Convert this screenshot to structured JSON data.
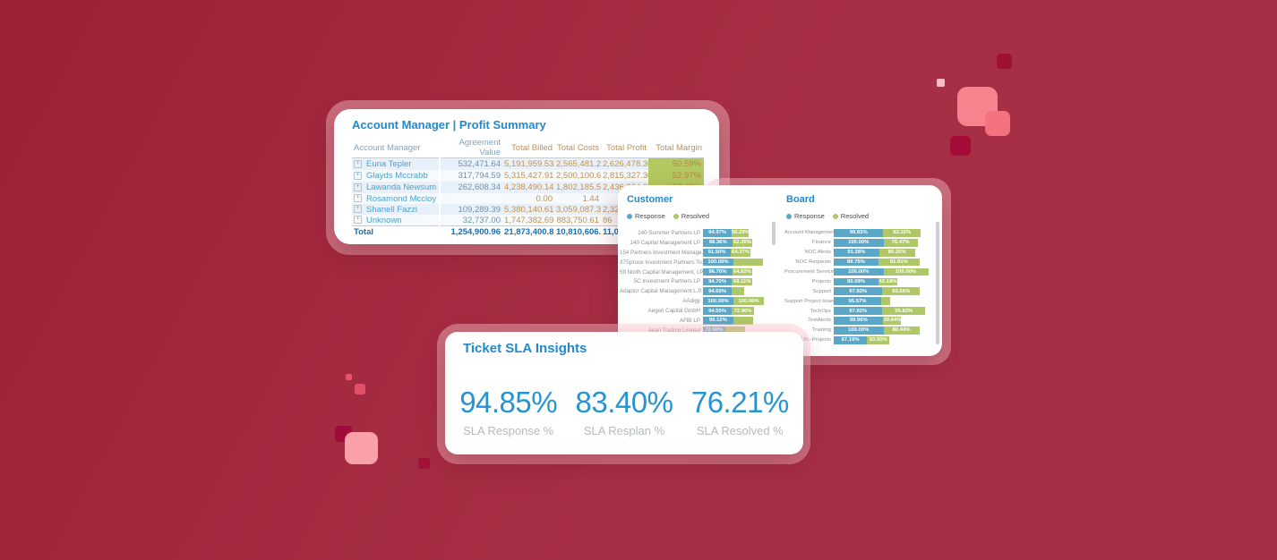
{
  "profit_card": {
    "title": "Account Manager | Profit Summary",
    "columns": [
      "Account Manager",
      "Agreement Value",
      "Total Billed",
      "Total Costs",
      "Total Profit",
      "Total Margin"
    ],
    "rows": [
      {
        "name": "Euna Tepler",
        "agreement": "532,471.64",
        "billed": "5,191,959.53",
        "costs": "2,565,481.23",
        "profit": "2,626,478.30",
        "margin": "50.59%",
        "profit_truncated": false
      },
      {
        "name": "Glayds Mccrabb",
        "agreement": "317,794.59",
        "billed": "5,315,427.91",
        "costs": "2,500,100.61",
        "profit": "2,815,327.30",
        "margin": "52.97%",
        "profit_truncated": false
      },
      {
        "name": "Lawanda Newsum",
        "agreement": "262,608.34",
        "billed": "4,238,490.14",
        "costs": "1,802,185.50",
        "profit": "2,436,304.64",
        "margin": "57.48%",
        "profit_truncated": false
      },
      {
        "name": "Rosamond Mccloy",
        "agreement": "",
        "billed": "0.00",
        "costs": "1.44",
        "profit": "",
        "margin": "",
        "profit_truncated": true
      },
      {
        "name": "Shanell Fazzi",
        "agreement": "109,289.39",
        "billed": "5,380,140.61",
        "costs": "3,059,087.31",
        "profit": "2,32",
        "margin": "",
        "profit_truncated": true
      },
      {
        "name": "Unknown",
        "agreement": "32,737.00",
        "billed": "1,747,382.69",
        "costs": "883,750.61",
        "profit": "86",
        "margin": "",
        "profit_truncated": true
      }
    ],
    "total_row": {
      "name": "Total",
      "agreement": "1,254,900.96",
      "billed": "21,873,400.88",
      "costs": "10,810,606.70",
      "profit": "11,062",
      "margin": "",
      "profit_truncated": true
    }
  },
  "charts_card": {
    "customer": {
      "title": "Customer",
      "legend": [
        {
          "label": "Response",
          "color": "#5ba7c7"
        },
        {
          "label": "Resolved",
          "color": "#aec868"
        }
      ],
      "rows": [
        {
          "label": "140 Summer Partners LP",
          "response_label": "94.97%",
          "response": 94.97,
          "resolved_label": "56.29%",
          "resolved": 56.29
        },
        {
          "label": "140 Capital Management LP",
          "response_label": "98.36%",
          "response": 98.36,
          "resolved_label": "62.30%",
          "resolved": 62.3
        },
        {
          "label": "154 Partners Investment Manage...",
          "response_label": "91.50%",
          "response": 91.5,
          "resolved_label": "64.37%",
          "resolved": 64.37
        },
        {
          "label": "37Spruce Investment Partners To...",
          "response_label": "100.00%",
          "response": 100.0,
          "resolved_label": "",
          "resolved": 97
        },
        {
          "label": "59 North Capital Management, LP",
          "response_label": "96.76%",
          "response": 96.76,
          "resolved_label": "64.82%",
          "resolved": 64.82
        },
        {
          "label": "5C Investment Partners LP",
          "response_label": "94.70%",
          "response": 94.7,
          "resolved_label": "68.11%",
          "resolved": 68.11
        },
        {
          "label": "Adaptor Capital Management L.P.",
          "response_label": "94.69%",
          "response": 94.69,
          "resolved_label": "",
          "resolved": 40
        },
        {
          "label": "AAdigy",
          "response_label": "100.00%",
          "response": 100.0,
          "resolved_label": "100.00%",
          "resolved": 100.0
        },
        {
          "label": "Aegeri Capital GmbH",
          "response_label": "94.55%",
          "response": 94.55,
          "resolved_label": "72.90%",
          "resolved": 72.9
        },
        {
          "label": "AFBI LP",
          "response_label": "99.12%",
          "response": 99.12,
          "resolved_label": "",
          "resolved": 66
        },
        {
          "label": "Akari Trading Limited",
          "response_label": "72.60%",
          "response": 72.6,
          "resolved_label": "",
          "resolved": 67
        }
      ]
    },
    "board": {
      "title": "Board",
      "legend": [
        {
          "label": "Response",
          "color": "#5ba7c7"
        },
        {
          "label": "Resolved",
          "color": "#aec868"
        }
      ],
      "rows": [
        {
          "label": "Account Management",
          "response_label": "99.83%",
          "response": 99.83,
          "resolved_label": "83.16%",
          "resolved": 83.16
        },
        {
          "label": "Finance",
          "response_label": "100.00%",
          "response": 100.0,
          "resolved_label": "76.47%",
          "resolved": 76.47
        },
        {
          "label": "NOC Alerts",
          "response_label": "91.28%",
          "response": 91.28,
          "resolved_label": "80.25%",
          "resolved": 80.25
        },
        {
          "label": "NOC Requests",
          "response_label": "89.75%",
          "response": 89.75,
          "resolved_label": "91.91%",
          "resolved": 91.91
        },
        {
          "label": "Procurement Service",
          "response_label": "100.00%",
          "response": 100.0,
          "resolved_label": "100.00%",
          "resolved": 100.0
        },
        {
          "label": "Projects",
          "response_label": "90.09%",
          "response": 90.09,
          "resolved_label": "42.19%",
          "resolved": 42.19
        },
        {
          "label": "Support",
          "response_label": "97.93%",
          "response": 97.93,
          "resolved_label": "83.56%",
          "resolved": 83.56
        },
        {
          "label": "Support Project board",
          "response_label": "95.57%",
          "response": 95.57,
          "resolved_label": "",
          "resolved": 19
        },
        {
          "label": "TechOps",
          "response_label": "97.92%",
          "response": 97.92,
          "resolved_label": "95.83%",
          "resolved": 95.83
        },
        {
          "label": "TestAlerts",
          "response_label": "99.96%",
          "response": 99.96,
          "resolved_label": "39.84%",
          "resolved": 39.84
        },
        {
          "label": "Training",
          "response_label": "100.00%",
          "response": 100.0,
          "resolved_label": "80.44%",
          "resolved": 80.44
        },
        {
          "label": "UK--Projects",
          "response_label": "67.19%",
          "response": 67.19,
          "resolved_label": "50.00%",
          "resolved": 50.0
        }
      ]
    }
  },
  "sla_card": {
    "title": "Ticket SLA Insights",
    "kpis": [
      {
        "value": "94.85%",
        "label": "SLA Response %"
      },
      {
        "value": "83.40%",
        "label": "SLA Resplan %"
      },
      {
        "value": "76.21%",
        "label": "SLA Resolved %"
      }
    ]
  },
  "colors": {
    "background": "#a52e44",
    "accent_blue": "#2289cc",
    "bar_response": "#5ba7c7",
    "bar_resolved": "#aec868",
    "margin_highlight": "#b3ca60",
    "measure_text": "#c3904f",
    "kpi_value": "#2794d1",
    "card_backing": "rgba(255,203,210,0.42)"
  }
}
